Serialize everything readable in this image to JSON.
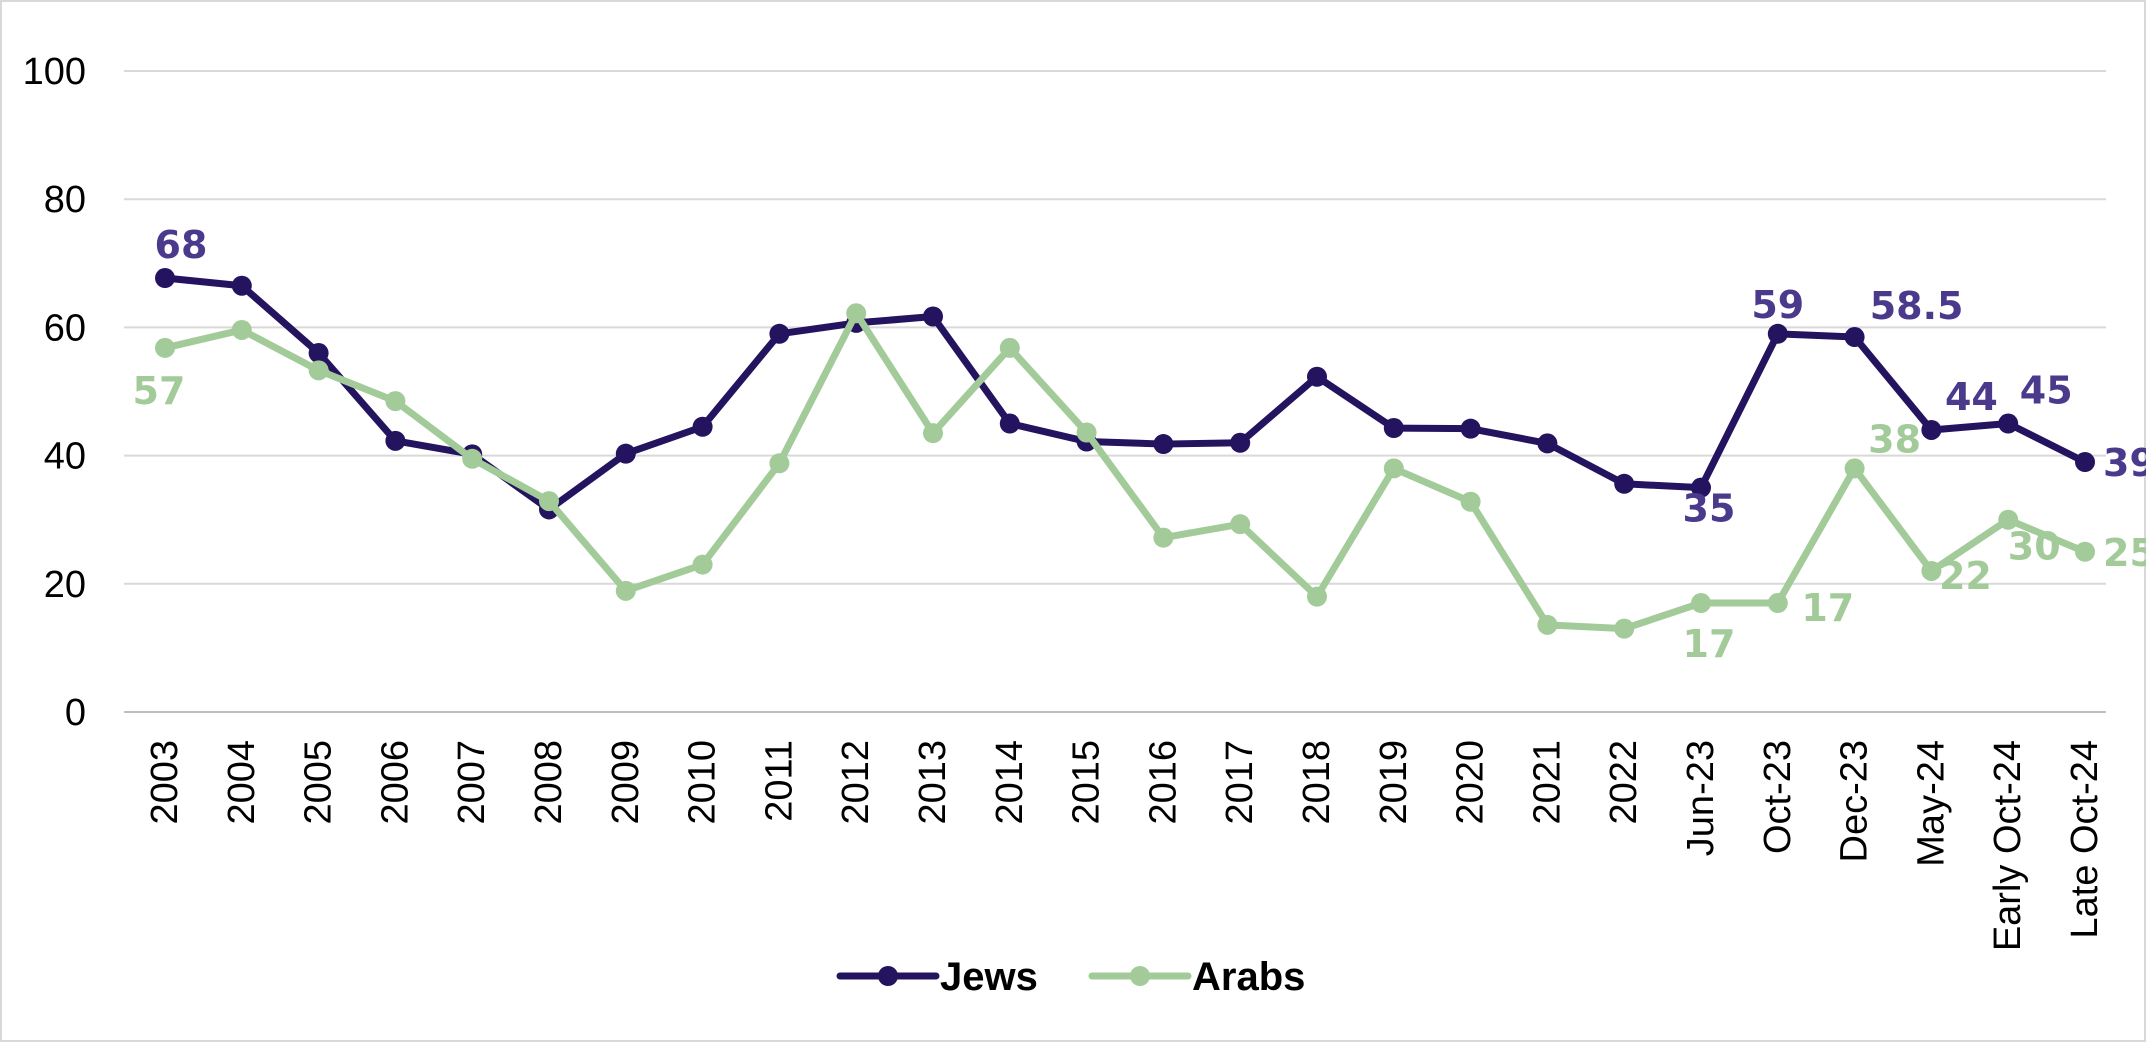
{
  "chart_data": {
    "type": "line",
    "title": "",
    "xlabel": "",
    "ylabel": "",
    "ylim": [
      0,
      100
    ],
    "y_ticks": [
      0,
      20,
      40,
      60,
      80,
      100
    ],
    "grid": true,
    "legend_position": "bottom-center",
    "categories": [
      "2003",
      "2004",
      "2005",
      "2006",
      "2007",
      "2008",
      "2009",
      "2010",
      "2011",
      "2012",
      "2013",
      "2014",
      "2015",
      "2016",
      "2017",
      "2018",
      "2019",
      "2020",
      "2021",
      "2022",
      "Jun-23",
      "Oct-23",
      "Dec-23",
      "May-24",
      "Early Oct-24",
      "Late Oct-24"
    ],
    "series": [
      {
        "name": "Jews",
        "color": "#24135f",
        "label_color": "#4b3a8c",
        "values": [
          67.7,
          66.5,
          56,
          42.3,
          40.2,
          31.6,
          40.3,
          44.5,
          59,
          60.7,
          61.7,
          45,
          42.2,
          41.8,
          42,
          52.3,
          44.3,
          44.2,
          41.9,
          35.6,
          35,
          59,
          58.5,
          44,
          45,
          39
        ],
        "data_labels": [
          {
            "index": 0,
            "text": "68"
          },
          {
            "index": 20,
            "text": "35"
          },
          {
            "index": 21,
            "text": "59"
          },
          {
            "index": 22,
            "text": "58.5"
          },
          {
            "index": 23,
            "text": "44"
          },
          {
            "index": 24,
            "text": "45"
          },
          {
            "index": 25,
            "text": "39"
          }
        ]
      },
      {
        "name": "Arabs",
        "color": "#a3cb9a",
        "label_color": "#a3cb9a",
        "values": [
          56.8,
          59.6,
          53.3,
          48.5,
          39.5,
          32.9,
          18.9,
          23,
          38.8,
          62.2,
          43.5,
          56.8,
          43.6,
          27.2,
          29.3,
          18,
          38,
          32.8,
          13.6,
          13,
          17,
          17,
          38,
          22,
          30,
          25
        ],
        "data_labels": [
          {
            "index": 0,
            "text": "57"
          },
          {
            "index": 20,
            "text": "17"
          },
          {
            "index": 21,
            "text": "17"
          },
          {
            "index": 22,
            "text": "38"
          },
          {
            "index": 23,
            "text": "22"
          },
          {
            "index": 24,
            "text": "30"
          },
          {
            "index": 25,
            "text": "25"
          }
        ]
      }
    ]
  }
}
